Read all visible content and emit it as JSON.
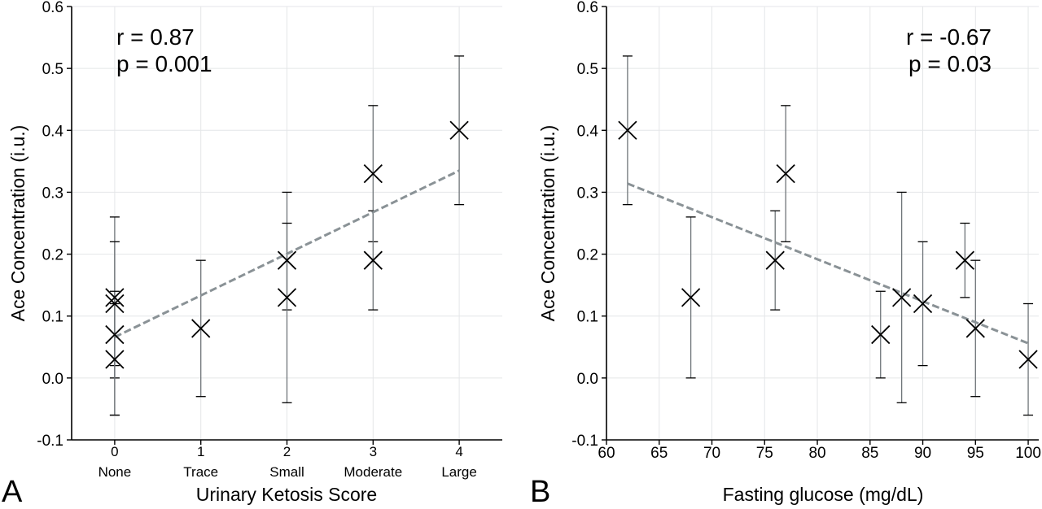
{
  "chart_data": [
    {
      "type": "scatter",
      "panel_label": "A",
      "xlabel": "Urinary Ketosis Score",
      "ylabel": "Ace Concentration (i.u.)",
      "xlim": [
        -0.5,
        4.5
      ],
      "ylim": [
        -0.1,
        0.6
      ],
      "xticks": [
        0,
        1,
        2,
        3,
        4
      ],
      "xtick_labels": [
        "0",
        "1",
        "2",
        "3",
        "4"
      ],
      "xcategory_labels": [
        "None",
        "Trace",
        "Small",
        "Moderate",
        "Large"
      ],
      "yticks": [
        -0.1,
        0.0,
        0.1,
        0.2,
        0.3,
        0.4,
        0.5,
        0.6
      ],
      "ytick_labels": [
        "-0.1",
        "0.0",
        "0.1",
        "0.2",
        "0.3",
        "0.4",
        "0.5",
        "0.6"
      ],
      "grid": true,
      "annotations": [
        "r = 0.87",
        "p = 0.001"
      ],
      "points": [
        {
          "x": 0,
          "y": 0.13,
          "ylo": 0.0,
          "yhi": 0.26
        },
        {
          "x": 0,
          "y": 0.12,
          "ylo": 0.02,
          "yhi": 0.22
        },
        {
          "x": 0,
          "y": 0.07,
          "ylo": -0.06,
          "yhi": 0.14
        },
        {
          "x": 0,
          "y": 0.03,
          "ylo": -0.06,
          "yhi": 0.12
        },
        {
          "x": 1,
          "y": 0.08,
          "ylo": -0.03,
          "yhi": 0.19
        },
        {
          "x": 2,
          "y": 0.19,
          "ylo": 0.11,
          "yhi": 0.3
        },
        {
          "x": 2,
          "y": 0.13,
          "ylo": -0.04,
          "yhi": 0.25
        },
        {
          "x": 3,
          "y": 0.33,
          "ylo": 0.22,
          "yhi": 0.44
        },
        {
          "x": 3,
          "y": 0.19,
          "ylo": 0.11,
          "yhi": 0.27
        },
        {
          "x": 4,
          "y": 0.4,
          "ylo": 0.28,
          "yhi": 0.52
        }
      ],
      "fit": {
        "x": [
          0,
          4
        ],
        "y": [
          0.066,
          0.335
        ]
      },
      "colors": {
        "fit": "#8a9296",
        "errorbar_axis": "#9aa0a4",
        "marker": "#000000",
        "grid": "#e4e6e8"
      }
    },
    {
      "type": "scatter",
      "panel_label": "B",
      "xlabel": "Fasting glucose (mg/dL)",
      "ylabel": "Ace Concentration (i.u.)",
      "xlim": [
        60,
        101
      ],
      "ylim": [
        -0.1,
        0.6
      ],
      "xticks": [
        60,
        65,
        70,
        75,
        80,
        85,
        90,
        95,
        100
      ],
      "xtick_labels": [
        "60",
        "65",
        "70",
        "75",
        "80",
        "85",
        "90",
        "95",
        "100"
      ],
      "yticks": [
        -0.1,
        0.0,
        0.1,
        0.2,
        0.3,
        0.4,
        0.5,
        0.6
      ],
      "ytick_labels": [
        "-0.1",
        "0.0",
        "0.1",
        "0.2",
        "0.3",
        "0.4",
        "0.5",
        "0.6"
      ],
      "grid": true,
      "annotations": [
        "r = -0.67",
        "p = 0.03"
      ],
      "points": [
        {
          "x": 62,
          "y": 0.4,
          "ylo": 0.28,
          "yhi": 0.52
        },
        {
          "x": 68,
          "y": 0.13,
          "ylo": 0.0,
          "yhi": 0.26
        },
        {
          "x": 76,
          "y": 0.19,
          "ylo": 0.11,
          "yhi": 0.27
        },
        {
          "x": 77,
          "y": 0.33,
          "ylo": 0.22,
          "yhi": 0.44
        },
        {
          "x": 86,
          "y": 0.07,
          "ylo": 0.0,
          "yhi": 0.14
        },
        {
          "x": 88,
          "y": 0.13,
          "ylo": -0.04,
          "yhi": 0.3
        },
        {
          "x": 90,
          "y": 0.12,
          "ylo": 0.02,
          "yhi": 0.22
        },
        {
          "x": 94,
          "y": 0.19,
          "ylo": 0.13,
          "yhi": 0.25
        },
        {
          "x": 95,
          "y": 0.08,
          "ylo": -0.03,
          "yhi": 0.19
        },
        {
          "x": 100,
          "y": 0.03,
          "ylo": -0.06,
          "yhi": 0.12
        }
      ],
      "fit": {
        "x": [
          62,
          100
        ],
        "y": [
          0.314,
          0.056
        ]
      },
      "colors": {
        "fit": "#8a9296",
        "errorbar_axis": "#9aa0a4",
        "marker": "#000000",
        "grid": "#e4e6e8"
      }
    }
  ]
}
